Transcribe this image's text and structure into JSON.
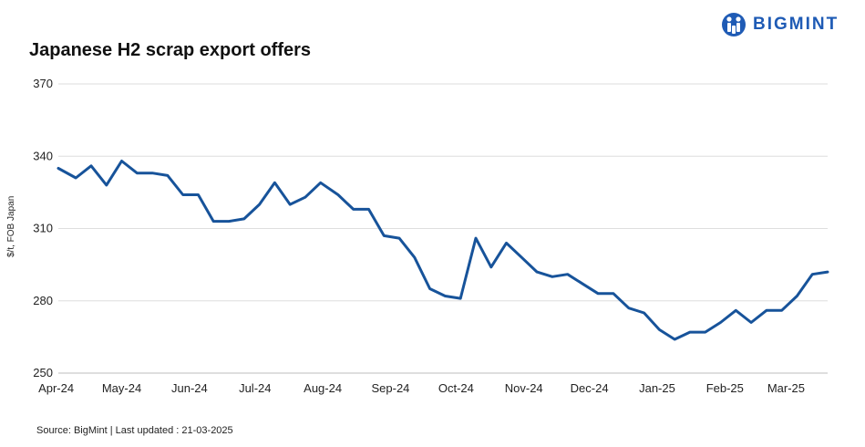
{
  "brand": {
    "name": "BIGMINT",
    "color": "#1f5bb5"
  },
  "chart_data": {
    "type": "line",
    "title": "Japanese H2 scrap export offers",
    "ylabel": "$/t, FOB Japan",
    "xlabel": "",
    "ylim": [
      250,
      370
    ],
    "yticks": [
      250,
      280,
      310,
      340,
      370
    ],
    "grid": true,
    "x_tick_labels": [
      "Apr-24",
      "May-24",
      "Jun-24",
      "Jul-24",
      "Aug-24",
      "Sep-24",
      "Oct-24",
      "Nov-24",
      "Dec-24",
      "Jan-25",
      "Feb-25",
      "Mar-25"
    ],
    "line_color": "#17539a",
    "x": [
      "2024-04-02",
      "2024-04-10",
      "2024-04-17",
      "2024-04-24",
      "2024-05-01",
      "2024-05-08",
      "2024-05-15",
      "2024-05-22",
      "2024-05-29",
      "2024-06-05",
      "2024-06-12",
      "2024-06-19",
      "2024-06-26",
      "2024-07-03",
      "2024-07-10",
      "2024-07-17",
      "2024-07-24",
      "2024-07-31",
      "2024-08-08",
      "2024-08-15",
      "2024-08-22",
      "2024-08-29",
      "2024-09-05",
      "2024-09-12",
      "2024-09-19",
      "2024-09-26",
      "2024-10-03",
      "2024-10-10",
      "2024-10-17",
      "2024-10-24",
      "2024-10-31",
      "2024-11-07",
      "2024-11-14",
      "2024-11-21",
      "2024-11-28",
      "2024-12-05",
      "2024-12-12",
      "2024-12-19",
      "2024-12-26",
      "2025-01-02",
      "2025-01-09",
      "2025-01-16",
      "2025-01-23",
      "2025-01-30",
      "2025-02-06",
      "2025-02-13",
      "2025-02-20",
      "2025-02-27",
      "2025-03-06",
      "2025-03-13",
      "2025-03-20"
    ],
    "series": [
      {
        "values": [
          335,
          331,
          336,
          328,
          338,
          333,
          333,
          332,
          324,
          324,
          313,
          313,
          314,
          320,
          329,
          320,
          323,
          329,
          324,
          318,
          318,
          307,
          306,
          298,
          285,
          282,
          281,
          306,
          294,
          304,
          298,
          292,
          290,
          291,
          287,
          283,
          283,
          277,
          275,
          268,
          264,
          267,
          267,
          271,
          276,
          271,
          276,
          276,
          282,
          291,
          292
        ]
      }
    ]
  },
  "footer": {
    "source": "Source: BigMint  | Last updated : 21-03-2025"
  }
}
